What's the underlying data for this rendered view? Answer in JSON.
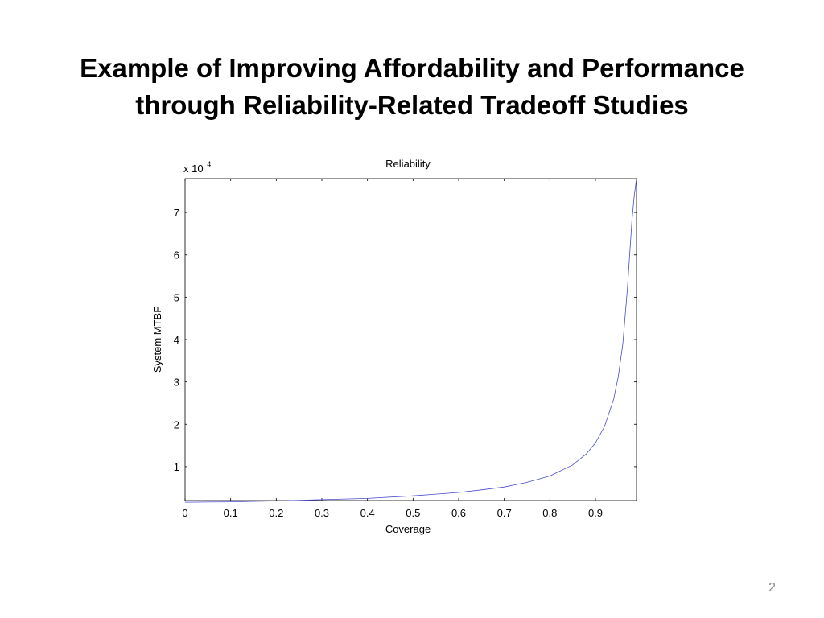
{
  "slide": {
    "title_line1": "Example of Improving Affordability and Performance",
    "title_line2": "through Reliability-Related Tradeoff Studies",
    "page_number": "2"
  },
  "colors": {
    "series": "#4a4acf",
    "axis": "#000000",
    "page_number": "#8c8c8c"
  },
  "chart_data": {
    "type": "line",
    "title": "Reliability",
    "xlabel": "Coverage",
    "ylabel": "System MTBF",
    "y_multiplier_base": "x 10",
    "y_multiplier_exp": "4",
    "xlim": [
      0,
      0.99
    ],
    "ylim": [
      0.2,
      7.8
    ],
    "x_ticks": [
      0,
      0.1,
      0.2,
      0.3,
      0.4,
      0.5,
      0.6,
      0.7,
      0.8,
      0.9
    ],
    "x_tick_labels": [
      "0",
      "0.1",
      "0.2",
      "0.3",
      "0.4",
      "0.5",
      "0.6",
      "0.7",
      "0.8",
      "0.9"
    ],
    "y_ticks": [
      1,
      2,
      3,
      4,
      5,
      6,
      7
    ],
    "y_tick_labels": [
      "1",
      "2",
      "3",
      "4",
      "5",
      "6",
      "7"
    ],
    "grid": false,
    "series": [
      {
        "x": [
          0,
          0.1,
          0.2,
          0.3,
          0.4,
          0.5,
          0.55,
          0.6,
          0.65,
          0.7,
          0.75,
          0.8,
          0.85,
          0.88,
          0.9,
          0.92,
          0.94,
          0.95,
          0.96,
          0.97,
          0.975,
          0.98,
          0.985,
          0.99
        ],
        "y": [
          0.16,
          0.17,
          0.19,
          0.22,
          0.25,
          0.31,
          0.35,
          0.39,
          0.45,
          0.52,
          0.63,
          0.78,
          1.04,
          1.3,
          1.56,
          1.95,
          2.6,
          3.12,
          3.9,
          5.2,
          6.0,
          6.8,
          7.4,
          7.8
        ]
      }
    ]
  }
}
